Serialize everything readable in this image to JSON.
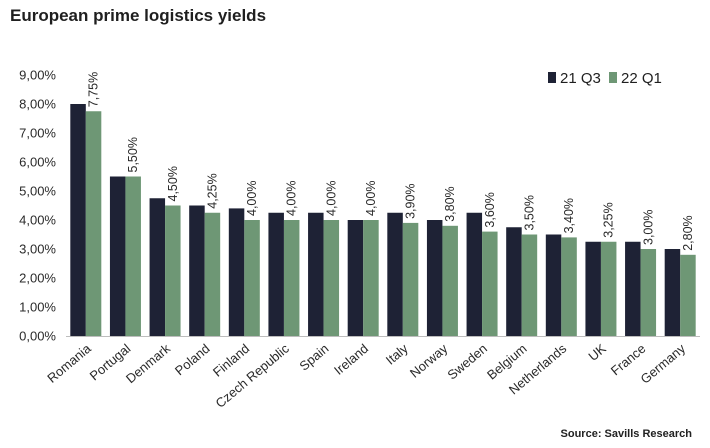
{
  "title": "European prime logistics yields",
  "source": "Source: Savills Research",
  "chart_data": {
    "type": "bar",
    "title": "European prime logistics yields",
    "xlabel": "",
    "ylabel": "",
    "ylim": [
      0,
      9
    ],
    "yticks": [
      "0,00%",
      "1,00%",
      "2,00%",
      "3,00%",
      "4,00%",
      "5,00%",
      "6,00%",
      "7,00%",
      "8,00%",
      "9,00%"
    ],
    "grid": false,
    "legend_position": "top-right",
    "categories": [
      "Romania",
      "Portugal",
      "Denmark",
      "Poland",
      "Finland",
      "Czech Republic",
      "Spain",
      "Ireland",
      "Italy",
      "Norway",
      "Sweden",
      "Belgium",
      "Netherlands",
      "UK",
      "France",
      "Germany"
    ],
    "series": [
      {
        "name": "21 Q3",
        "color": "#1e2235",
        "values": [
          8.0,
          5.5,
          4.75,
          4.5,
          4.4,
          4.25,
          4.25,
          4.0,
          4.25,
          4.0,
          4.25,
          3.75,
          3.5,
          3.25,
          3.25,
          3.0
        ]
      },
      {
        "name": "22 Q1",
        "color": "#6e9775",
        "values": [
          7.75,
          5.5,
          4.5,
          4.25,
          4.0,
          4.0,
          4.0,
          4.0,
          3.9,
          3.8,
          3.6,
          3.5,
          3.4,
          3.25,
          3.0,
          2.8
        ],
        "data_labels": [
          "7,75%",
          "5,50%",
          "4,50%",
          "4,25%",
          "4,00%",
          "4,00%",
          "4,00%",
          "4,00%",
          "3,90%",
          "3,80%",
          "3,60%",
          "3,50%",
          "3,40%",
          "3,25%",
          "3,00%",
          "2,80%"
        ]
      }
    ]
  }
}
